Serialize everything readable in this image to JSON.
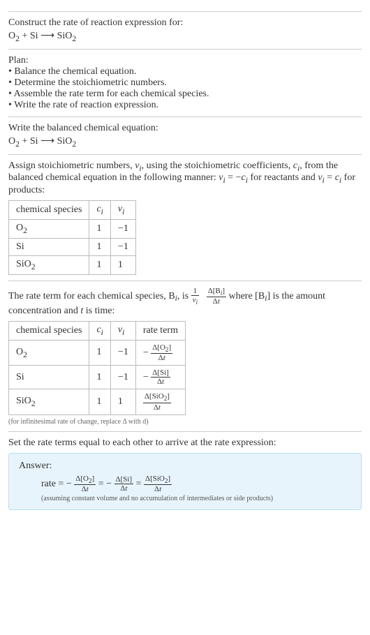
{
  "intro": {
    "construct": "Construct the rate of reaction expression for:",
    "equation_html": "O<sub>2</sub> + Si ⟶ SiO<sub>2</sub>"
  },
  "plan": {
    "heading": "Plan:",
    "b1": "• Balance the chemical equation.",
    "b2": "• Determine the stoichiometric numbers.",
    "b3": "• Assemble the rate term for each chemical species.",
    "b4": "• Write the rate of reaction expression."
  },
  "balanced": {
    "heading": "Write the balanced chemical equation:",
    "equation_html": "O<sub>2</sub> + Si ⟶ SiO<sub>2</sub>"
  },
  "assign": {
    "text_html": "Assign stoichiometric numbers, <i>ν<sub>i</sub></i>, using the stoichiometric coefficients, <i>c<sub>i</sub></i>, from the balanced chemical equation in the following manner: <i>ν<sub>i</sub></i> = −<i>c<sub>i</sub></i> for reactants and <i>ν<sub>i</sub></i> = <i>c<sub>i</sub></i> for products:",
    "table": {
      "headers": {
        "h1": "chemical species",
        "h2_html": "<i>c<sub>i</sub></i>",
        "h3_html": "<i>ν<sub>i</sub></i>"
      },
      "rows": [
        {
          "sp_html": "O<sub>2</sub>",
          "c": "1",
          "v": "−1"
        },
        {
          "sp_html": "Si",
          "c": "1",
          "v": "−1"
        },
        {
          "sp_html": "SiO<sub>2</sub>",
          "c": "1",
          "v": "1"
        }
      ]
    }
  },
  "rateterm": {
    "text_pre": "The rate term for each chemical species, B",
    "text_mid": ", is ",
    "frac1_num": "1",
    "frac1_den_html": "<i>ν<sub>i</sub></i>",
    "frac2_num_html": "Δ[B<i><sub>i</sub></i>]",
    "frac2_den_html": "Δ<i>t</i>",
    "text_post_html": " where [B<i><sub>i</sub></i>] is the amount concentration and <i>t</i> is time:",
    "table": {
      "headers": {
        "h1": "chemical species",
        "h2_html": "<i>c<sub>i</sub></i>",
        "h3_html": "<i>ν<sub>i</sub></i>",
        "h4": "rate term"
      },
      "rows": [
        {
          "sp_html": "O<sub>2</sub>",
          "c": "1",
          "v": "−1",
          "rt_num_html": "Δ[O<sub>2</sub>]",
          "rt_den_html": "Δ<i>t</i>",
          "neg": "−"
        },
        {
          "sp_html": "Si",
          "c": "1",
          "v": "−1",
          "rt_num_html": "Δ[Si]",
          "rt_den_html": "Δ<i>t</i>",
          "neg": "−"
        },
        {
          "sp_html": "SiO<sub>2</sub>",
          "c": "1",
          "v": "1",
          "rt_num_html": "Δ[SiO<sub>2</sub>]",
          "rt_den_html": "Δ<i>t</i>",
          "neg": ""
        }
      ]
    },
    "footnote": "(for infinitesimal rate of change, replace Δ with d)"
  },
  "setequal": {
    "text": "Set the rate terms equal to each other to arrive at the rate expression:"
  },
  "answer": {
    "heading": "Answer:",
    "rate_label": "rate = ",
    "t1_neg": "−",
    "t1_num_html": "Δ[O<sub>2</sub>]",
    "t1_den_html": "Δ<i>t</i>",
    "eq1": " = ",
    "t2_neg": "−",
    "t2_num_html": "Δ[Si]",
    "t2_den_html": "Δ<i>t</i>",
    "eq2": " = ",
    "t3_num_html": "Δ[SiO<sub>2</sub>]",
    "t3_den_html": "Δ<i>t</i>",
    "note": "(assuming constant volume and no accumulation of intermediates or side products)"
  },
  "colors": {
    "answer_bg": "#e8f4fb",
    "answer_border": "#b8dff0",
    "divider": "#cccccc",
    "table_border": "#bbbbbb",
    "text": "#333333"
  }
}
